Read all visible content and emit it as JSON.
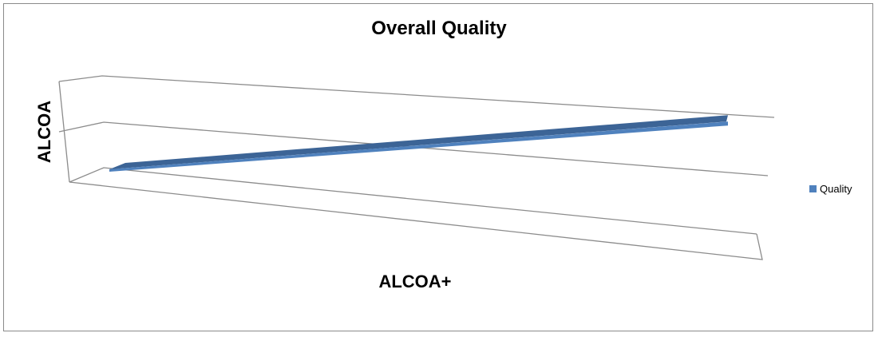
{
  "chart_data": {
    "type": "line",
    "style": "3d",
    "title": "Overall Quality",
    "xlabel": "ALCOA+",
    "ylabel": "ALCOA",
    "series": [
      {
        "name": "Quality",
        "values": [
          0,
          1.9
        ],
        "color": "#4F81BD"
      }
    ],
    "ylim": [
      0,
      2
    ],
    "grid": true,
    "legend": "right"
  }
}
